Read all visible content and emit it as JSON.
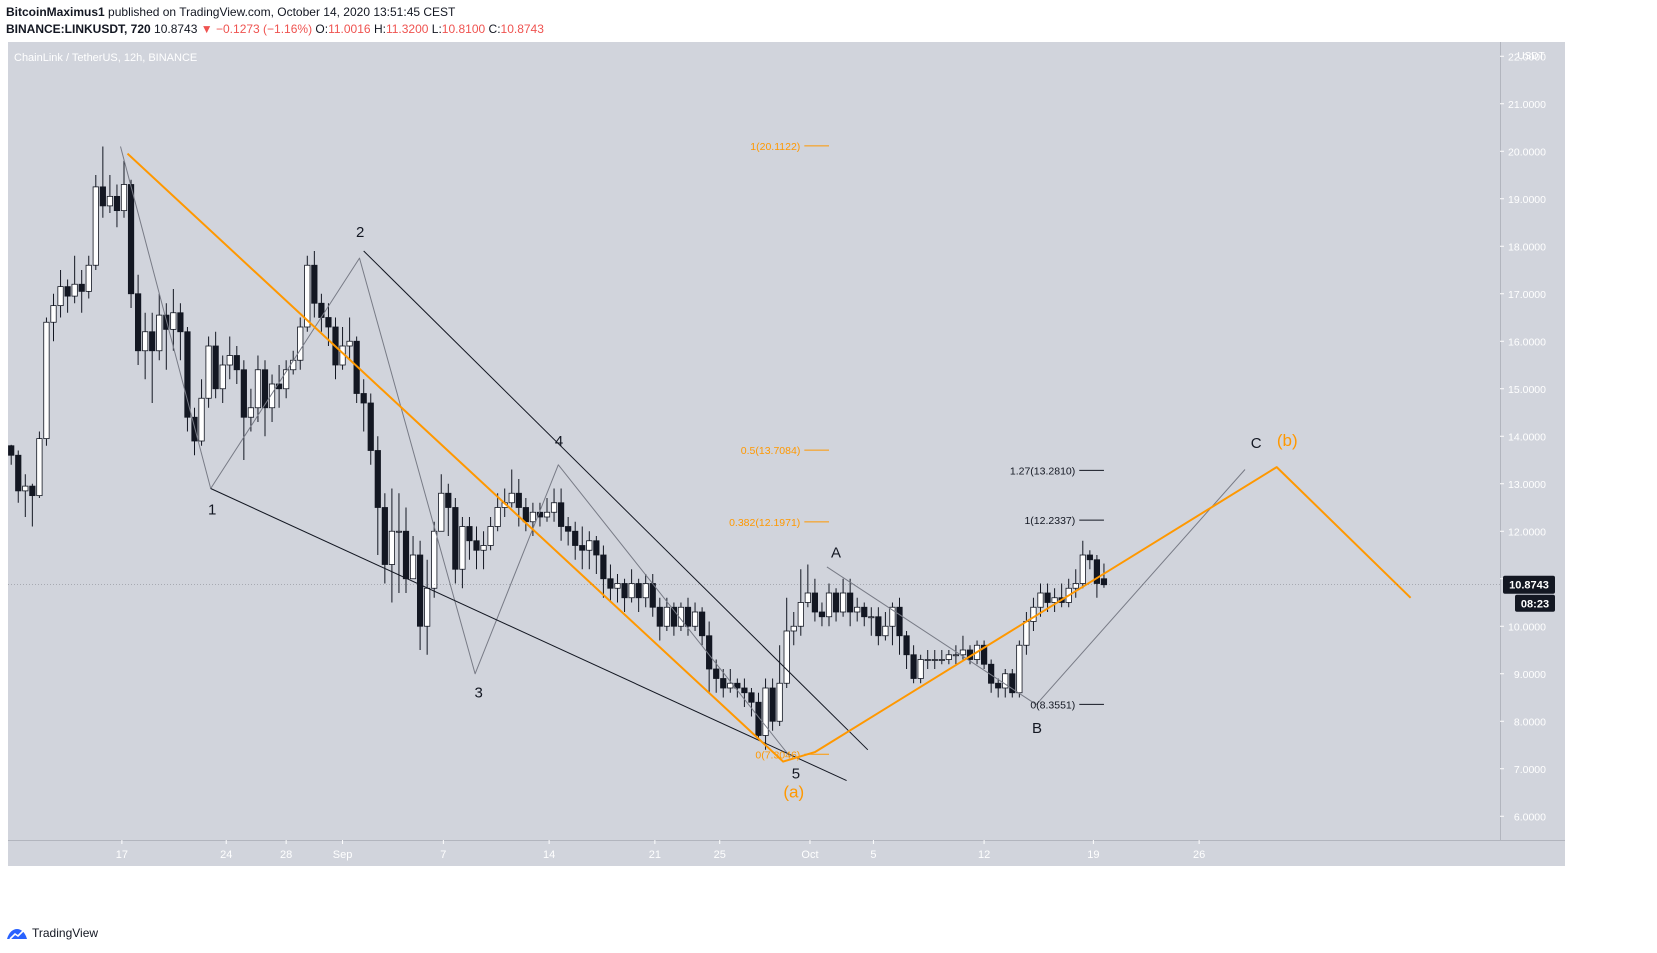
{
  "header": {
    "author": "BitcoinMaximus1",
    "published": "published on TradingView.com, October 14, 2020 13:51:45 CEST",
    "symbol": "BINANCE:LINKUSDT, 720",
    "price": "10.8743",
    "change": "−0.1273 (−1.16%)",
    "o_label": "O:",
    "o": "11.0016",
    "h_label": "H:",
    "h": "11.3200",
    "l_label": "L:",
    "l": "10.8100",
    "c_label": "C:",
    "c": "10.8743"
  },
  "footer": {
    "brand": "TradingView"
  },
  "colors": {
    "background": "#d1d4dc",
    "orange": "#ff9800",
    "candle_up": "#ffffff",
    "candle_down": "#131722"
  },
  "chart_data": {
    "type": "candlestick",
    "title": "ChainLink / TetherUS, 12h, BINANCE",
    "currency": "USDT",
    "ylim": [
      5.5,
      22.3
    ],
    "y_ticks": [
      "6.0000",
      "7.0000",
      "8.0000",
      "9.0000",
      "10.0000",
      "11.0000",
      "12.0000",
      "13.0000",
      "14.0000",
      "15.0000",
      "16.0000",
      "17.0000",
      "18.0000",
      "19.0000",
      "20.0000",
      "21.0000",
      "22.0000"
    ],
    "x_ticks": [
      {
        "bar": 15.7,
        "label": "17"
      },
      {
        "bar": 30.5,
        "label": "24"
      },
      {
        "bar": 39,
        "label": "28"
      },
      {
        "bar": 47,
        "label": "Sep"
      },
      {
        "bar": 61.3,
        "label": "7"
      },
      {
        "bar": 76.3,
        "label": "14"
      },
      {
        "bar": 91.3,
        "label": "21"
      },
      {
        "bar": 100.5,
        "label": "25"
      },
      {
        "bar": 113.3,
        "label": "Oct"
      },
      {
        "bar": 122.3,
        "label": "5"
      },
      {
        "bar": 138,
        "label": "12"
      },
      {
        "bar": 153.5,
        "label": "19"
      },
      {
        "bar": 168.5,
        "label": "26"
      }
    ],
    "last_price": "10.8743",
    "countdown": "08:23",
    "candles": [
      [
        13.8,
        13.6,
        13.82,
        13.4
      ],
      [
        13.6,
        12.85,
        13.7,
        12.6
      ],
      [
        12.85,
        12.95,
        13.2,
        12.3
      ],
      [
        12.95,
        12.75,
        13.0,
        12.1
      ],
      [
        12.75,
        13.95,
        14.1,
        12.7
      ],
      [
        13.95,
        16.4,
        16.5,
        13.8
      ],
      [
        16.4,
        16.75,
        17.0,
        16.0
      ],
      [
        16.75,
        17.15,
        17.5,
        16.5
      ],
      [
        17.15,
        16.95,
        17.3,
        16.6
      ],
      [
        16.95,
        17.2,
        17.8,
        16.8
      ],
      [
        17.2,
        17.05,
        17.5,
        16.6
      ],
      [
        17.05,
        17.6,
        17.8,
        16.9
      ],
      [
        17.6,
        19.25,
        19.5,
        17.5
      ],
      [
        19.25,
        18.85,
        20.1,
        18.6
      ],
      [
        18.85,
        19.05,
        19.5,
        18.7
      ],
      [
        19.05,
        18.75,
        19.3,
        18.4
      ],
      [
        18.75,
        19.3,
        19.8,
        18.6
      ],
      [
        19.3,
        17.0,
        19.4,
        16.7
      ],
      [
        17.0,
        15.8,
        17.4,
        15.5
      ],
      [
        15.8,
        16.2,
        16.6,
        15.2
      ],
      [
        16.2,
        15.8,
        16.6,
        14.7
      ],
      [
        15.8,
        16.55,
        17.0,
        15.6
      ],
      [
        16.55,
        16.25,
        16.8,
        15.4
      ],
      [
        16.25,
        16.6,
        17.1,
        15.8
      ],
      [
        16.6,
        16.2,
        16.8,
        15.6
      ],
      [
        16.2,
        14.4,
        16.3,
        14.1
      ],
      [
        14.4,
        13.9,
        14.6,
        13.6
      ],
      [
        13.9,
        14.8,
        15.2,
        13.8
      ],
      [
        14.8,
        15.9,
        16.1,
        14.6
      ],
      [
        15.9,
        15.0,
        16.2,
        14.8
      ],
      [
        15.0,
        15.5,
        15.7,
        14.7
      ],
      [
        15.5,
        15.7,
        16.1,
        15.2
      ],
      [
        15.7,
        15.4,
        15.9,
        15.1
      ],
      [
        15.4,
        14.4,
        15.6,
        13.5
      ],
      [
        14.4,
        14.6,
        15.0,
        14.1
      ],
      [
        14.6,
        15.4,
        15.7,
        14.3
      ],
      [
        15.4,
        14.6,
        15.6,
        14.0
      ],
      [
        14.6,
        15.1,
        15.3,
        14.3
      ],
      [
        15.1,
        15.0,
        15.5,
        14.6
      ],
      [
        15.0,
        15.4,
        15.6,
        14.8
      ],
      [
        15.4,
        15.6,
        15.8,
        15.3
      ],
      [
        15.6,
        16.3,
        16.5,
        15.4
      ],
      [
        16.3,
        17.6,
        17.8,
        16.2
      ],
      [
        17.6,
        16.8,
        17.9,
        16.5
      ],
      [
        16.8,
        16.5,
        17.0,
        16.2
      ],
      [
        16.5,
        16.3,
        16.8,
        15.9
      ],
      [
        16.3,
        15.5,
        16.5,
        15.2
      ],
      [
        15.5,
        15.9,
        16.3,
        15.4
      ],
      [
        15.9,
        16.0,
        16.5,
        15.6
      ],
      [
        16.0,
        14.9,
        16.1,
        14.7
      ],
      [
        14.9,
        14.7,
        15.2,
        14.1
      ],
      [
        14.7,
        13.7,
        14.9,
        13.4
      ],
      [
        13.7,
        12.5,
        14.0,
        11.5
      ],
      [
        12.5,
        11.3,
        12.8,
        10.9
      ],
      [
        11.3,
        12.0,
        12.9,
        10.5
      ],
      [
        12.0,
        12.0,
        12.8,
        10.7
      ],
      [
        12.0,
        11.0,
        12.5,
        10.7
      ],
      [
        11.0,
        11.5,
        11.9,
        11.1
      ],
      [
        11.5,
        10.0,
        11.8,
        9.5
      ],
      [
        10.0,
        10.8,
        11.4,
        9.4
      ],
      [
        10.8,
        12.0,
        12.2,
        10.6
      ],
      [
        12.0,
        12.8,
        13.2,
        12.2
      ],
      [
        12.8,
        12.5,
        13.0,
        11.9
      ],
      [
        12.5,
        11.2,
        12.7,
        10.9
      ],
      [
        11.2,
        12.1,
        12.3,
        10.8
      ],
      [
        12.1,
        11.8,
        12.3,
        11.4
      ],
      [
        11.8,
        11.6,
        12.1,
        11.2
      ],
      [
        11.6,
        11.7,
        12.0,
        11.2
      ],
      [
        11.7,
        12.1,
        12.3,
        11.6
      ],
      [
        12.1,
        12.5,
        12.8,
        12.0
      ],
      [
        12.5,
        12.6,
        12.9,
        12.3
      ],
      [
        12.6,
        12.8,
        13.3,
        12.5
      ],
      [
        12.8,
        12.5,
        13.1,
        12.1
      ],
      [
        12.5,
        12.2,
        12.7,
        12.0
      ],
      [
        12.2,
        12.4,
        12.6,
        11.9
      ],
      [
        12.4,
        12.3,
        12.6,
        12.1
      ],
      [
        12.3,
        12.4,
        12.7,
        12.2
      ],
      [
        12.4,
        12.6,
        12.9,
        12.2
      ],
      [
        12.6,
        12.1,
        12.9,
        11.8
      ],
      [
        12.1,
        12.0,
        12.3,
        11.7
      ],
      [
        12.0,
        11.7,
        12.2,
        11.4
      ],
      [
        11.7,
        11.6,
        12.1,
        11.2
      ],
      [
        11.6,
        11.8,
        12.0,
        11.2
      ],
      [
        11.8,
        11.5,
        11.9,
        11.1
      ],
      [
        11.5,
        11.0,
        11.7,
        10.6
      ],
      [
        11.0,
        10.8,
        11.3,
        10.5
      ],
      [
        10.8,
        10.9,
        11.1,
        10.5
      ],
      [
        10.9,
        10.6,
        11.0,
        10.3
      ],
      [
        10.6,
        10.9,
        11.2,
        10.5
      ],
      [
        10.9,
        10.6,
        11.0,
        10.3
      ],
      [
        10.6,
        10.9,
        11.1,
        10.4
      ],
      [
        10.9,
        10.4,
        11.1,
        10.2
      ],
      [
        10.4,
        10.0,
        10.6,
        9.7
      ],
      [
        10.0,
        10.4,
        10.6,
        9.9
      ],
      [
        10.4,
        10.0,
        10.5,
        9.8
      ],
      [
        10.0,
        10.4,
        10.5,
        9.9
      ],
      [
        10.4,
        10.0,
        10.6,
        9.8
      ],
      [
        10.0,
        10.3,
        10.5,
        9.9
      ],
      [
        10.3,
        9.8,
        10.4,
        9.6
      ],
      [
        9.8,
        9.1,
        10.1,
        8.6
      ],
      [
        9.1,
        8.9,
        9.3,
        8.6
      ],
      [
        8.9,
        8.7,
        9.1,
        8.5
      ],
      [
        8.7,
        8.8,
        9.1,
        8.6
      ],
      [
        8.8,
        8.7,
        8.9,
        8.5
      ],
      [
        8.7,
        8.6,
        8.9,
        8.3
      ],
      [
        8.6,
        8.4,
        8.7,
        8.1
      ],
      [
        8.4,
        7.7,
        8.6,
        7.6
      ],
      [
        7.7,
        8.7,
        8.9,
        7.4
      ],
      [
        8.7,
        8.0,
        8.9,
        7.8
      ],
      [
        8.0,
        8.8,
        9.6,
        7.9
      ],
      [
        8.8,
        9.9,
        10.6,
        8.7
      ],
      [
        9.9,
        10.0,
        10.3,
        9.6
      ],
      [
        10.0,
        10.5,
        11.2,
        9.8
      ],
      [
        10.5,
        10.7,
        11.3,
        10.4
      ],
      [
        10.7,
        10.3,
        11.0,
        10.1
      ],
      [
        10.3,
        10.2,
        10.5,
        10.0
      ],
      [
        10.2,
        10.7,
        10.9,
        10.0
      ],
      [
        10.7,
        10.3,
        10.8,
        10.1
      ],
      [
        10.3,
        10.7,
        11.0,
        10.2
      ],
      [
        10.7,
        10.3,
        11.0,
        10.0
      ],
      [
        10.3,
        10.4,
        10.6,
        10.1
      ],
      [
        10.4,
        10.2,
        10.5,
        10.0
      ],
      [
        10.2,
        10.2,
        10.4,
        9.8
      ],
      [
        10.2,
        9.8,
        10.4,
        9.6
      ],
      [
        9.8,
        10.0,
        10.3,
        9.7
      ],
      [
        10.0,
        10.4,
        10.5,
        9.6
      ],
      [
        10.4,
        9.8,
        10.6,
        9.4
      ],
      [
        9.8,
        9.4,
        9.9,
        9.1
      ],
      [
        9.4,
        8.9,
        9.6,
        8.8
      ],
      [
        8.9,
        9.3,
        9.4,
        8.8
      ],
      [
        9.3,
        9.3,
        9.5,
        9.1
      ],
      [
        9.3,
        9.3,
        9.5,
        9.1
      ],
      [
        9.3,
        9.3,
        9.5,
        9.2
      ],
      [
        9.3,
        9.4,
        9.5,
        9.2
      ],
      [
        9.4,
        9.4,
        9.6,
        9.2
      ],
      [
        9.4,
        9.5,
        9.8,
        9.3
      ],
      [
        9.5,
        9.3,
        9.6,
        9.2
      ],
      [
        9.3,
        9.6,
        9.7,
        9.2
      ],
      [
        9.6,
        9.2,
        9.7,
        9.1
      ],
      [
        9.2,
        8.8,
        9.3,
        8.6
      ],
      [
        8.8,
        8.7,
        8.9,
        8.5
      ],
      [
        8.7,
        9.0,
        9.1,
        8.5
      ],
      [
        9.0,
        8.6,
        9.1,
        8.5
      ],
      [
        8.6,
        9.6,
        9.7,
        8.5
      ],
      [
        9.6,
        10.1,
        10.3,
        9.4
      ],
      [
        10.1,
        10.4,
        10.6,
        9.9
      ],
      [
        10.4,
        10.7,
        10.9,
        10.2
      ],
      [
        10.7,
        10.5,
        10.9,
        10.3
      ],
      [
        10.5,
        10.6,
        10.8,
        10.3
      ],
      [
        10.6,
        10.5,
        10.9,
        10.4
      ],
      [
        10.5,
        10.8,
        11.0,
        10.4
      ],
      [
        10.8,
        10.9,
        11.2,
        10.6
      ],
      [
        10.9,
        11.5,
        11.8,
        10.8
      ],
      [
        11.5,
        11.4,
        11.6,
        11.2
      ],
      [
        11.4,
        10.9,
        11.5,
        10.6
      ],
      [
        11.0,
        10.8743,
        11.32,
        10.81
      ]
    ],
    "waves": {
      "thin_gray": [
        {
          "points": [
            [
              15.5,
              20.1
            ],
            [
              28.3,
              12.9
            ],
            [
              49.4,
              17.75
            ],
            [
              65.8,
              9.0
            ],
            [
              77.6,
              13.4
            ],
            [
              110.5,
              7.25
            ]
          ]
        },
        {
          "points": [
            [
              115.7,
              11.25
            ],
            [
              145.4,
              8.35
            ],
            [
              175,
              13.3
            ]
          ]
        }
      ],
      "orange": [
        {
          "points": [
            [
              16.5,
              19.95
            ],
            [
              109.5,
              7.15
            ],
            [
              114,
              7.35
            ],
            [
              179.5,
              13.35
            ],
            [
              198.5,
              10.6
            ]
          ]
        }
      ],
      "black_channel": [
        {
          "points": [
            [
              28.3,
              12.9
            ],
            [
              118.5,
              6.75
            ]
          ]
        },
        {
          "points": [
            [
              50,
              17.9
            ],
            [
              121.5,
              7.4
            ]
          ]
        }
      ]
    },
    "wave_labels": [
      {
        "text": "1",
        "bar": 28.5,
        "y": 12.35,
        "color": "#131722"
      },
      {
        "text": "2",
        "bar": 49.5,
        "y": 18.2,
        "color": "#131722"
      },
      {
        "text": "3",
        "bar": 66.3,
        "y": 8.5,
        "color": "#131722"
      },
      {
        "text": "4",
        "bar": 77.7,
        "y": 13.8,
        "color": "#131722"
      },
      {
        "text": "5",
        "bar": 111.3,
        "y": 6.8,
        "color": "#131722"
      },
      {
        "text": "A",
        "bar": 117,
        "y": 11.45,
        "color": "#131722"
      },
      {
        "text": "B",
        "bar": 145.5,
        "y": 7.75,
        "color": "#131722"
      },
      {
        "text": "C",
        "bar": 176.6,
        "y": 13.75,
        "color": "#131722"
      },
      {
        "text": "(a)",
        "bar": 111,
        "y": 6.4,
        "color": "#ff9800"
      },
      {
        "text": "(b)",
        "bar": 181,
        "y": 13.8,
        "color": "#ff9800"
      }
    ],
    "fib_levels": [
      {
        "label": "1(20.1122)",
        "y": 20.1122,
        "bar_start": 112.5,
        "bar_end": 116,
        "color": "#ff9800"
      },
      {
        "label": "0.5(13.7084)",
        "y": 13.7084,
        "bar_start": 112.5,
        "bar_end": 116,
        "color": "#ff9800"
      },
      {
        "label": "0.382(12.1971)",
        "y": 12.1971,
        "bar_start": 112.5,
        "bar_end": 116,
        "color": "#ff9800"
      },
      {
        "label": "0(7.3046)",
        "y": 7.3046,
        "bar_start": 112.5,
        "bar_end": 116,
        "color": "#ff9800"
      },
      {
        "label": "1.27(13.2810)",
        "y": 13.281,
        "bar_start": 151.5,
        "bar_end": 155,
        "color": "#131722"
      },
      {
        "label": "1(12.2337)",
        "y": 12.2337,
        "bar_start": 151.5,
        "bar_end": 155,
        "color": "#131722"
      },
      {
        "label": "0(8.3551)",
        "y": 8.3551,
        "bar_start": 151.5,
        "bar_end": 155,
        "color": "#131722"
      }
    ]
  }
}
